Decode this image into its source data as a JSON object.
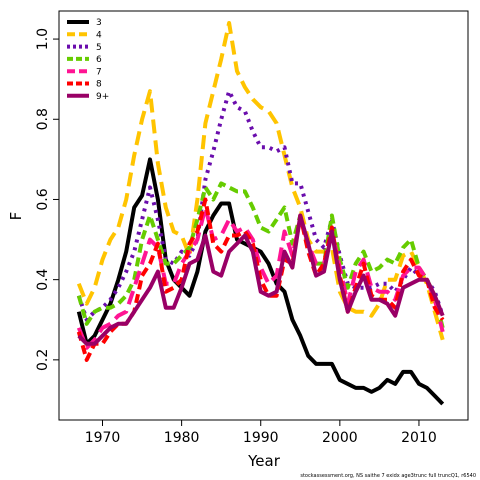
{
  "chart_data": {
    "type": "line",
    "xlabel": "Year",
    "ylabel": "F",
    "xlim": [
      1964.5,
      2016.2
    ],
    "ylim": [
      0.05,
      1.07
    ],
    "xticks": [
      "1970",
      "1980",
      "1990",
      "2000",
      "2010"
    ],
    "yticks": [
      "0.2",
      "0.4",
      "0.6",
      "0.8",
      "1.0"
    ],
    "grid": false,
    "legend_position": "top-left",
    "footnote": "stockassessment.org, NS saithe 7 exidx age3trunc full truncQ1, r6540",
    "x": [
      1967,
      1968,
      1969,
      1970,
      1971,
      1972,
      1973,
      1974,
      1975,
      1976,
      1977,
      1978,
      1979,
      1980,
      1981,
      1982,
      1983,
      1984,
      1985,
      1986,
      1987,
      1988,
      1989,
      1990,
      1991,
      1992,
      1993,
      1994,
      1995,
      1996,
      1997,
      1998,
      1999,
      2000,
      2001,
      2002,
      2003,
      2004,
      2005,
      2006,
      2007,
      2008,
      2009,
      2010,
      2011,
      2012,
      2013
    ],
    "series": [
      {
        "name": "3",
        "color": "#000000",
        "dash": "solid",
        "values": [
          0.32,
          0.24,
          0.26,
          0.3,
          0.34,
          0.4,
          0.47,
          0.58,
          0.61,
          0.7,
          0.6,
          0.45,
          0.4,
          0.38,
          0.36,
          0.42,
          0.52,
          0.56,
          0.59,
          0.59,
          0.5,
          0.49,
          0.48,
          0.47,
          0.44,
          0.39,
          0.37,
          0.3,
          0.26,
          0.21,
          0.19,
          0.19,
          0.19,
          0.15,
          0.14,
          0.13,
          0.13,
          0.12,
          0.13,
          0.15,
          0.14,
          0.17,
          0.17,
          0.14,
          0.13,
          0.11,
          0.09
        ]
      },
      {
        "name": "4",
        "color": "#ffc400",
        "dash": "long",
        "values": [
          0.39,
          0.34,
          0.38,
          0.45,
          0.5,
          0.53,
          0.6,
          0.71,
          0.8,
          0.87,
          0.69,
          0.58,
          0.52,
          0.51,
          0.46,
          0.6,
          0.79,
          0.87,
          0.95,
          1.04,
          0.92,
          0.88,
          0.85,
          0.83,
          0.82,
          0.79,
          0.71,
          0.63,
          0.58,
          0.5,
          0.47,
          0.47,
          0.48,
          0.37,
          0.33,
          0.32,
          0.32,
          0.31,
          0.34,
          0.4,
          0.4,
          0.46,
          0.47,
          0.43,
          0.39,
          0.32,
          0.25
        ]
      },
      {
        "name": "5",
        "color": "#6a0dad",
        "dash": "dot",
        "values": [
          0.36,
          0.3,
          0.32,
          0.33,
          0.35,
          0.38,
          0.42,
          0.47,
          0.55,
          0.63,
          0.55,
          0.45,
          0.44,
          0.47,
          0.46,
          0.5,
          0.65,
          0.72,
          0.8,
          0.87,
          0.83,
          0.82,
          0.77,
          0.73,
          0.73,
          0.72,
          0.73,
          0.64,
          0.64,
          0.57,
          0.5,
          0.48,
          0.55,
          0.46,
          0.39,
          0.38,
          0.38,
          0.38,
          0.39,
          0.39,
          0.37,
          0.4,
          0.43,
          0.41,
          0.4,
          0.37,
          0.31
        ]
      },
      {
        "name": "6",
        "color": "#66cc00",
        "dash": "medium",
        "values": [
          0.36,
          0.29,
          0.32,
          0.33,
          0.33,
          0.34,
          0.36,
          0.4,
          0.5,
          0.56,
          0.5,
          0.44,
          0.44,
          0.46,
          0.48,
          0.55,
          0.63,
          0.6,
          0.64,
          0.63,
          0.62,
          0.62,
          0.58,
          0.53,
          0.52,
          0.55,
          0.58,
          0.49,
          0.56,
          0.48,
          0.44,
          0.44,
          0.56,
          0.45,
          0.38,
          0.44,
          0.47,
          0.42,
          0.43,
          0.45,
          0.44,
          0.48,
          0.5,
          0.43,
          0.4,
          0.36,
          0.28
        ]
      },
      {
        "name": "7",
        "color": "#ff1493",
        "dash": "long",
        "values": [
          0.28,
          0.23,
          0.25,
          0.28,
          0.29,
          0.31,
          0.32,
          0.38,
          0.44,
          0.5,
          0.48,
          0.39,
          0.39,
          0.44,
          0.47,
          0.5,
          0.58,
          0.5,
          0.51,
          0.55,
          0.52,
          0.53,
          0.5,
          0.43,
          0.39,
          0.41,
          0.52,
          0.46,
          0.55,
          0.49,
          0.44,
          0.44,
          0.52,
          0.43,
          0.34,
          0.42,
          0.45,
          0.38,
          0.37,
          0.37,
          0.35,
          0.41,
          0.43,
          0.43,
          0.4,
          0.35,
          0.27
        ]
      },
      {
        "name": "8",
        "color": "#ff0000",
        "dash": "medium",
        "values": [
          0.27,
          0.2,
          0.24,
          0.24,
          0.27,
          0.29,
          0.29,
          0.32,
          0.41,
          0.44,
          0.49,
          0.37,
          0.38,
          0.4,
          0.49,
          0.52,
          0.6,
          0.49,
          0.47,
          0.51,
          0.51,
          0.52,
          0.49,
          0.4,
          0.36,
          0.36,
          0.45,
          0.44,
          0.56,
          0.47,
          0.41,
          0.44,
          0.53,
          0.41,
          0.32,
          0.38,
          0.44,
          0.36,
          0.35,
          0.35,
          0.33,
          0.42,
          0.45,
          0.41,
          0.4,
          0.33,
          0.3
        ]
      },
      {
        "name": "9+",
        "color": "#990066",
        "dash": "solid",
        "values": [
          0.26,
          0.24,
          0.24,
          0.26,
          0.28,
          0.29,
          0.29,
          0.32,
          0.35,
          0.38,
          0.42,
          0.33,
          0.33,
          0.38,
          0.44,
          0.45,
          0.51,
          0.42,
          0.41,
          0.47,
          0.49,
          0.51,
          0.47,
          0.37,
          0.36,
          0.37,
          0.47,
          0.43,
          0.56,
          0.49,
          0.41,
          0.42,
          0.52,
          0.4,
          0.32,
          0.37,
          0.41,
          0.35,
          0.35,
          0.34,
          0.31,
          0.38,
          0.39,
          0.4,
          0.4,
          0.36,
          0.31
        ]
      }
    ]
  }
}
